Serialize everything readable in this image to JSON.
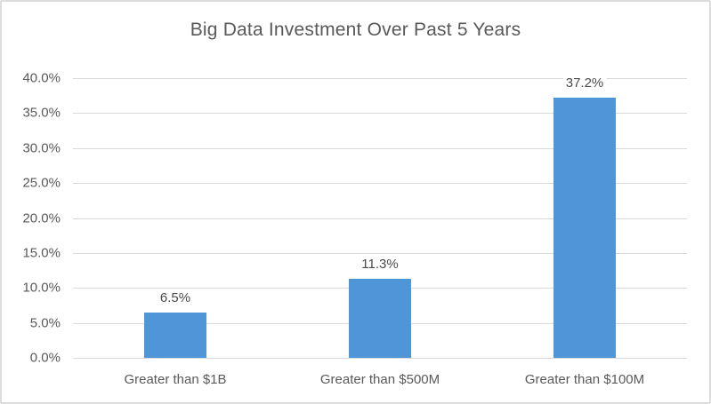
{
  "chart_data": {
    "type": "bar",
    "title": "Big Data Investment Over Past 5 Years",
    "categories": [
      "Greater than $1B",
      "Greater than $500M",
      "Greater than $100M"
    ],
    "values": [
      6.5,
      11.3,
      37.2
    ],
    "value_labels": [
      "6.5%",
      "11.3%",
      "37.2%"
    ],
    "xlabel": "",
    "ylabel": "",
    "ylim": [
      0,
      40
    ],
    "ytick_step": 5,
    "yticks": [
      "40.0%",
      "35.0%",
      "30.0%",
      "25.0%",
      "20.0%",
      "15.0%",
      "10.0%",
      "5.0%",
      "0.0%"
    ],
    "grid": true,
    "legend": false,
    "bar_color": "#4e96d8",
    "grid_color": "#d9d9d9",
    "axis_text_color": "#595959",
    "value_text_color": "#4a4a4a",
    "title_color": "#595959",
    "frame_border_color": "#dcdcdc",
    "background_color": "#ffffff"
  }
}
